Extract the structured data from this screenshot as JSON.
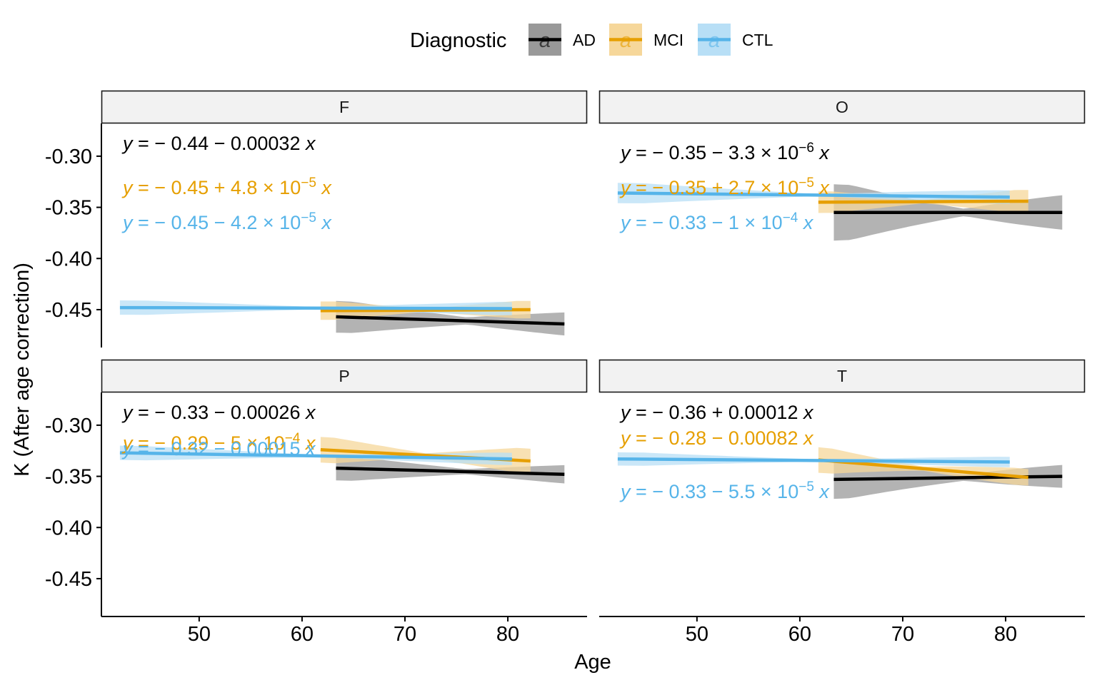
{
  "legend": {
    "title": "Diagnostic",
    "key_glyph": "a",
    "items": [
      {
        "label": "AD",
        "color": "#000000",
        "fill": "#999999"
      },
      {
        "label": "MCI",
        "color": "#E69F00",
        "fill": "#F6D79A"
      },
      {
        "label": "CTL",
        "color": "#56B4E9",
        "fill": "#B8DFF6"
      }
    ]
  },
  "chart_data": {
    "type": "line",
    "xlabel": "Age",
    "ylabel": "K (After age correction)",
    "xlim": [
      40.5,
      87.7
    ],
    "ylim": [
      -0.487,
      -0.268
    ],
    "x_ticks": [
      50,
      60,
      70,
      80
    ],
    "y_ticks": [
      -0.3,
      -0.35,
      -0.4,
      -0.45
    ],
    "y_tick_labels": [
      "-0.30",
      "-0.35",
      "-0.40",
      "-0.45"
    ],
    "grid": false,
    "legend_position": "top",
    "panels": [
      {
        "strip": "F",
        "series": [
          {
            "name": "AD",
            "x": [
              63.3,
              85.5
            ],
            "y": [
              -0.457,
              -0.464
            ],
            "ci_lower": [
              -0.47,
              -0.476
            ],
            "ci_upper": [
              -0.439,
              -0.451
            ],
            "ci_mid_x": 76,
            "ci_mid_width": 0.007,
            "equation": [
              {
                "t": "y",
                "i": true
              },
              {
                "t": " = "
              },
              {
                "t": "− 0.44 − 0.00032 "
              },
              {
                "t": "x",
                "i": true
              }
            ]
          },
          {
            "name": "MCI",
            "x": [
              61.8,
              82.2
            ],
            "y": [
              -0.451,
              -0.45
            ],
            "ci_lower": [
              -0.46,
              -0.458
            ],
            "ci_upper": [
              -0.442,
              -0.441
            ],
            "ci_mid_x": 72,
            "ci_mid_width": 0.003,
            "equation": [
              {
                "t": "y",
                "i": true
              },
              {
                "t": " = "
              },
              {
                "t": "− 0.45 + 4.8 × 10"
              },
              {
                "t": "−5",
                "sup": true
              },
              {
                "t": " "
              },
              {
                "t": "x",
                "i": true
              }
            ]
          },
          {
            "name": "CTL",
            "x": [
              42.3,
              80.4
            ],
            "y": [
              -0.448,
              -0.449
            ],
            "ci_lower": [
              -0.455,
              -0.455
            ],
            "ci_upper": [
              -0.441,
              -0.442
            ],
            "ci_mid_x": 62,
            "ci_mid_width": 0.002,
            "equation": [
              {
                "t": "y",
                "i": true
              },
              {
                "t": " = "
              },
              {
                "t": "− 0.45 − 4.2 × 10"
              },
              {
                "t": "−5",
                "sup": true
              },
              {
                "t": " "
              },
              {
                "t": "x",
                "i": true
              }
            ]
          }
        ]
      },
      {
        "strip": "O",
        "series": [
          {
            "name": "AD",
            "x": [
              63.3,
              85.5
            ],
            "y": [
              -0.355,
              -0.355
            ],
            "ci_lower": [
              -0.382,
              -0.374
            ],
            "ci_upper": [
              -0.327,
              -0.336
            ],
            "ci_mid_x": 76,
            "ci_mid_width": 0.007,
            "equation": [
              {
                "t": "y",
                "i": true
              },
              {
                "t": " = "
              },
              {
                "t": "− 0.35 − 3.3 × 10"
              },
              {
                "t": "−6",
                "sup": true
              },
              {
                "t": " "
              },
              {
                "t": "x",
                "i": true
              }
            ]
          },
          {
            "name": "MCI",
            "x": [
              61.8,
              82.2
            ],
            "y": [
              -0.345,
              -0.344
            ],
            "ci_lower": [
              -0.355,
              -0.355
            ],
            "ci_upper": [
              -0.334,
              -0.333
            ],
            "ci_mid_x": 72,
            "ci_mid_width": 0.003,
            "equation": [
              {
                "t": "y",
                "i": true
              },
              {
                "t": " = "
              },
              {
                "t": "− 0.35 + 2.7 × 10"
              },
              {
                "t": "−5",
                "sup": true
              },
              {
                "t": " "
              },
              {
                "t": "x",
                "i": true
              }
            ]
          },
          {
            "name": "CTL",
            "x": [
              42.3,
              80.4
            ],
            "y": [
              -0.336,
              -0.34
            ],
            "ci_lower": [
              -0.346,
              -0.347
            ],
            "ci_upper": [
              -0.326,
              -0.334
            ],
            "ci_mid_x": 62,
            "ci_mid_width": 0.002,
            "equation": [
              {
                "t": "y",
                "i": true
              },
              {
                "t": " = "
              },
              {
                "t": "− 0.33 − 1 × 10"
              },
              {
                "t": "−4",
                "sup": true
              },
              {
                "t": " "
              },
              {
                "t": "x",
                "i": true
              }
            ]
          }
        ]
      },
      {
        "strip": "P",
        "series": [
          {
            "name": "AD",
            "x": [
              63.3,
              85.5
            ],
            "y": [
              -0.342,
              -0.348
            ],
            "ci_lower": [
              -0.355,
              -0.358
            ],
            "ci_upper": [
              -0.331,
              -0.338
            ],
            "ci_mid_x": 76,
            "ci_mid_width": 0.005,
            "equation": [
              {
                "t": "y",
                "i": true
              },
              {
                "t": " = "
              },
              {
                "t": "− 0.33 − 0.00026 "
              },
              {
                "t": "x",
                "i": true
              }
            ]
          },
          {
            "name": "MCI",
            "x": [
              61.8,
              82.2
            ],
            "y": [
              -0.324,
              -0.335
            ],
            "ci_lower": [
              -0.336,
              -0.346
            ],
            "ci_upper": [
              -0.311,
              -0.322
            ],
            "ci_mid_x": 72,
            "ci_mid_width": 0.004,
            "equation": [
              {
                "t": "y",
                "i": true
              },
              {
                "t": " = "
              },
              {
                "t": "− 0.29 − 5 × 10"
              },
              {
                "t": "−4",
                "sup": true
              },
              {
                "t": " "
              },
              {
                "t": "x",
                "i": true
              }
            ]
          },
          {
            "name": "CTL",
            "x": [
              42.3,
              80.4
            ],
            "y": [
              -0.327,
              -0.333
            ],
            "ci_lower": [
              -0.334,
              -0.339
            ],
            "ci_upper": [
              -0.32,
              -0.327
            ],
            "ci_mid_x": 62,
            "ci_mid_width": 0.002,
            "equation": [
              {
                "t": "y",
                "i": true
              },
              {
                "t": " = "
              },
              {
                "t": "− 0.32 − 0.00015 "
              },
              {
                "t": "x",
                "i": true
              }
            ]
          }
        ]
      },
      {
        "strip": "T",
        "series": [
          {
            "name": "AD",
            "x": [
              63.3,
              85.5
            ],
            "y": [
              -0.353,
              -0.35
            ],
            "ci_lower": [
              -0.372,
              -0.363
            ],
            "ci_upper": [
              -0.334,
              -0.338
            ],
            "ci_mid_x": 76,
            "ci_mid_width": 0.006,
            "equation": [
              {
                "t": "y",
                "i": true
              },
              {
                "t": " = "
              },
              {
                "t": "− 0.36 + 0.00012 "
              },
              {
                "t": "x",
                "i": true
              }
            ]
          },
          {
            "name": "MCI",
            "x": [
              61.8,
              82.2
            ],
            "y": [
              -0.334,
              -0.351
            ],
            "ci_lower": [
              -0.347,
              -0.359
            ],
            "ci_upper": [
              -0.322,
              -0.343
            ],
            "ci_mid_x": 72,
            "ci_mid_width": 0.004,
            "equation": [
              {
                "t": "y",
                "i": true
              },
              {
                "t": " = "
              },
              {
                "t": "− 0.28 − 0.00082 "
              },
              {
                "t": "x",
                "i": true
              }
            ]
          },
          {
            "name": "CTL",
            "x": [
              42.3,
              80.4
            ],
            "y": [
              -0.333,
              -0.336
            ],
            "ci_lower": [
              -0.34,
              -0.341
            ],
            "ci_upper": [
              -0.327,
              -0.331
            ],
            "ci_mid_x": 62,
            "ci_mid_width": 0.002,
            "equation": [
              {
                "t": "y",
                "i": true
              },
              {
                "t": " = "
              },
              {
                "t": "− 0.33 − 5.5 × 10"
              },
              {
                "t": "−5",
                "sup": true
              },
              {
                "t": " "
              },
              {
                "t": "x",
                "i": true
              }
            ]
          }
        ]
      }
    ]
  }
}
